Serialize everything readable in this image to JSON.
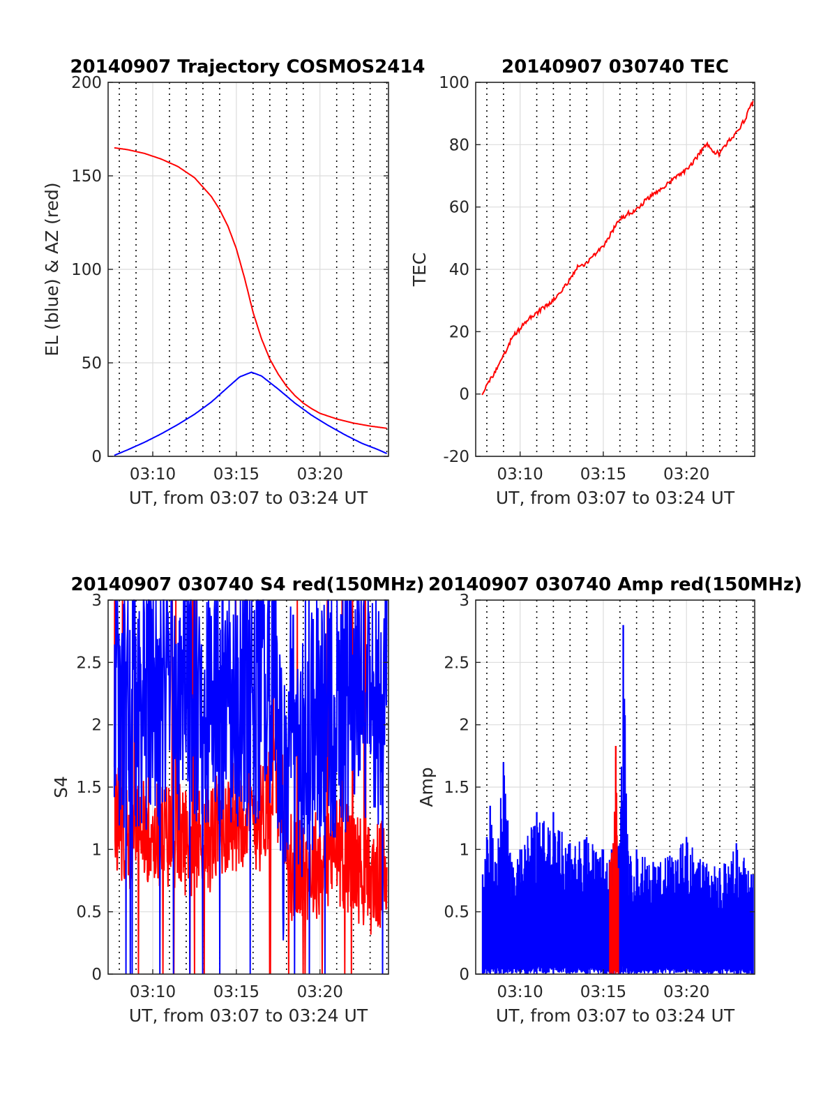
{
  "colors": {
    "red": "#ff0000",
    "blue": "#0000ff",
    "text": "#262626"
  },
  "chart_data": [
    {
      "type": "line",
      "title": "20140907 Trajectory COSMOS2414",
      "xlabel": "UT, from 03:07 to 03:24 UT",
      "ylabel": "EL (blue) & AZ (red)",
      "xlim": [
        7.33,
        24.1
      ],
      "ylim": [
        0,
        200
      ],
      "yticks": [
        0,
        50,
        100,
        150,
        200
      ],
      "xticks": [
        {
          "v": 10,
          "label": "03:10"
        },
        {
          "v": 15,
          "label": "03:15"
        },
        {
          "v": 20,
          "label": "03:20"
        }
      ],
      "grid": true,
      "series": [
        {
          "color": "red",
          "x": [
            7.7,
            8.5,
            9.5,
            10.5,
            11.5,
            12.5,
            13.5,
            14.0,
            14.5,
            15.0,
            15.5,
            16.0,
            16.5,
            17.0,
            17.5,
            18.0,
            18.5,
            19.0,
            19.5,
            20.0,
            21.0,
            22.0,
            23.0,
            24.0
          ],
          "y": [
            165,
            164,
            162,
            159,
            155,
            149,
            139,
            132,
            123,
            111,
            95,
            77,
            63,
            52,
            44,
            37.5,
            32.5,
            28.5,
            25.5,
            23,
            20,
            17.8,
            16.2,
            15
          ]
        },
        {
          "color": "blue",
          "x": [
            7.7,
            8.5,
            9.5,
            10.5,
            11.5,
            12.5,
            13.5,
            14.5,
            15.2,
            15.9,
            16.5,
            17.5,
            18.5,
            19.5,
            20.5,
            21.5,
            22.5,
            23.5,
            24.0
          ],
          "y": [
            0.5,
            3.5,
            7.5,
            12,
            17,
            22.5,
            29,
            37,
            42.5,
            45,
            43,
            36,
            28.5,
            22,
            16.5,
            11.5,
            7,
            3.5,
            1.5
          ]
        }
      ]
    },
    {
      "type": "line",
      "title": "20140907 030740 TEC",
      "xlabel": "UT, from 03:07 to 03:24 UT",
      "ylabel": "TEC",
      "xlim": [
        7.33,
        24.1
      ],
      "ylim": [
        -20,
        100
      ],
      "yticks": [
        -20,
        0,
        20,
        40,
        60,
        80,
        100
      ],
      "xticks": [
        {
          "v": 10,
          "label": "03:10"
        },
        {
          "v": 15,
          "label": "03:15"
        },
        {
          "v": 20,
          "label": "03:20"
        }
      ],
      "grid": true,
      "series": [
        {
          "color": "red",
          "x": [
            7.7,
            8.0,
            8.5,
            9.0,
            9.5,
            10.0,
            10.5,
            11.0,
            11.5,
            12.0,
            12.5,
            13.0,
            13.5,
            14.0,
            14.5,
            15.0,
            15.5,
            16.0,
            16.5,
            17.0,
            17.5,
            18.0,
            18.5,
            19.0,
            19.5,
            20.0,
            20.5,
            21.0,
            21.3,
            21.6,
            22.0,
            22.5,
            23.0,
            23.5,
            24.0
          ],
          "y": [
            0,
            3,
            7,
            12,
            18,
            21,
            24,
            26,
            28,
            30,
            33,
            37,
            41,
            42,
            45,
            47,
            52,
            56,
            58,
            59,
            62,
            64,
            66,
            68,
            70,
            72,
            75,
            79,
            80,
            78,
            77,
            81,
            84,
            88,
            94
          ]
        }
      ]
    },
    {
      "type": "line",
      "title": "20140907 030740 S4 red(150MHz)",
      "xlabel": "UT, from 03:07 to 03:24 UT",
      "ylabel": "S4",
      "xlim": [
        7.33,
        24.1
      ],
      "ylim": [
        0,
        3
      ],
      "yticks": [
        0,
        0.5,
        1,
        1.5,
        2,
        2.5,
        3
      ],
      "xticks": [
        {
          "v": 10,
          "label": "03:10"
        },
        {
          "v": 15,
          "label": "03:15"
        },
        {
          "v": 20,
          "label": "03:20"
        }
      ],
      "grid": true,
      "series": [
        {
          "color": "red",
          "x": [
            7.7,
            8.5,
            9.5,
            10.5,
            11.5,
            12.5,
            13.5,
            14.5,
            15.5,
            16.5,
            17.3,
            17.8,
            18.3,
            19.0,
            20.0,
            21.0,
            22.0,
            23.0,
            24.0
          ],
          "y": [
            1.3,
            1.1,
            1.2,
            1.1,
            1.1,
            1.05,
            1.1,
            1.25,
            1.3,
            1.25,
            1.6,
            1.3,
            0.85,
            0.85,
            0.9,
            1.0,
            0.9,
            0.75,
            0.8
          ]
        },
        {
          "color": "blue",
          "x": [
            7.7,
            8.5,
            9.5,
            10.5,
            11.5,
            12.5,
            13.5,
            14.5,
            15.5,
            16.5,
            17.3,
            17.8,
            18.3,
            19.0,
            20.0,
            21.0,
            22.0,
            23.0,
            24.0
          ],
          "y": [
            2.1,
            2.3,
            2.2,
            2.3,
            2.2,
            2.3,
            2.3,
            2.2,
            2.2,
            2.3,
            2.2,
            1.3,
            2.0,
            1.8,
            2.0,
            2.2,
            2.2,
            2.2,
            2.4
          ]
        }
      ]
    },
    {
      "type": "line",
      "title": "20140907 030740 Amp red(150MHz)",
      "xlabel": "UT, from 03:07 to 03:24 UT",
      "ylabel": "Amp",
      "xlim": [
        7.33,
        24.1
      ],
      "ylim": [
        0,
        3
      ],
      "yticks": [
        0,
        0.5,
        1,
        1.5,
        2,
        2.5,
        3
      ],
      "xticks": [
        {
          "v": 10,
          "label": "03:10"
        },
        {
          "v": 15,
          "label": "03:15"
        },
        {
          "v": 20,
          "label": "03:20"
        }
      ],
      "grid": true,
      "series": [
        {
          "color": "blue",
          "x": [
            7.75,
            8.0,
            8.2,
            8.5,
            9.0,
            9.5,
            10.0,
            11.0,
            12.0,
            13.0,
            14.0,
            15.0,
            15.5,
            16.0,
            16.2,
            16.5,
            17.0,
            18.0,
            19.0,
            20.0,
            21.0,
            22.0,
            23.0,
            24.0
          ],
          "y": [
            0.8,
            1.1,
            1.35,
            0.9,
            1.7,
            0.9,
            1.0,
            1.3,
            1.3,
            1.05,
            1.1,
            1.0,
            1.0,
            1.05,
            2.8,
            0.95,
            1.0,
            0.9,
            0.95,
            1.1,
            0.9,
            0.85,
            1.05,
            0.8
          ]
        },
        {
          "color": "red",
          "x": [
            15.4,
            15.6,
            15.75,
            15.9
          ],
          "y": [
            0.9,
            1.05,
            1.83,
            0.85
          ]
        }
      ]
    }
  ]
}
